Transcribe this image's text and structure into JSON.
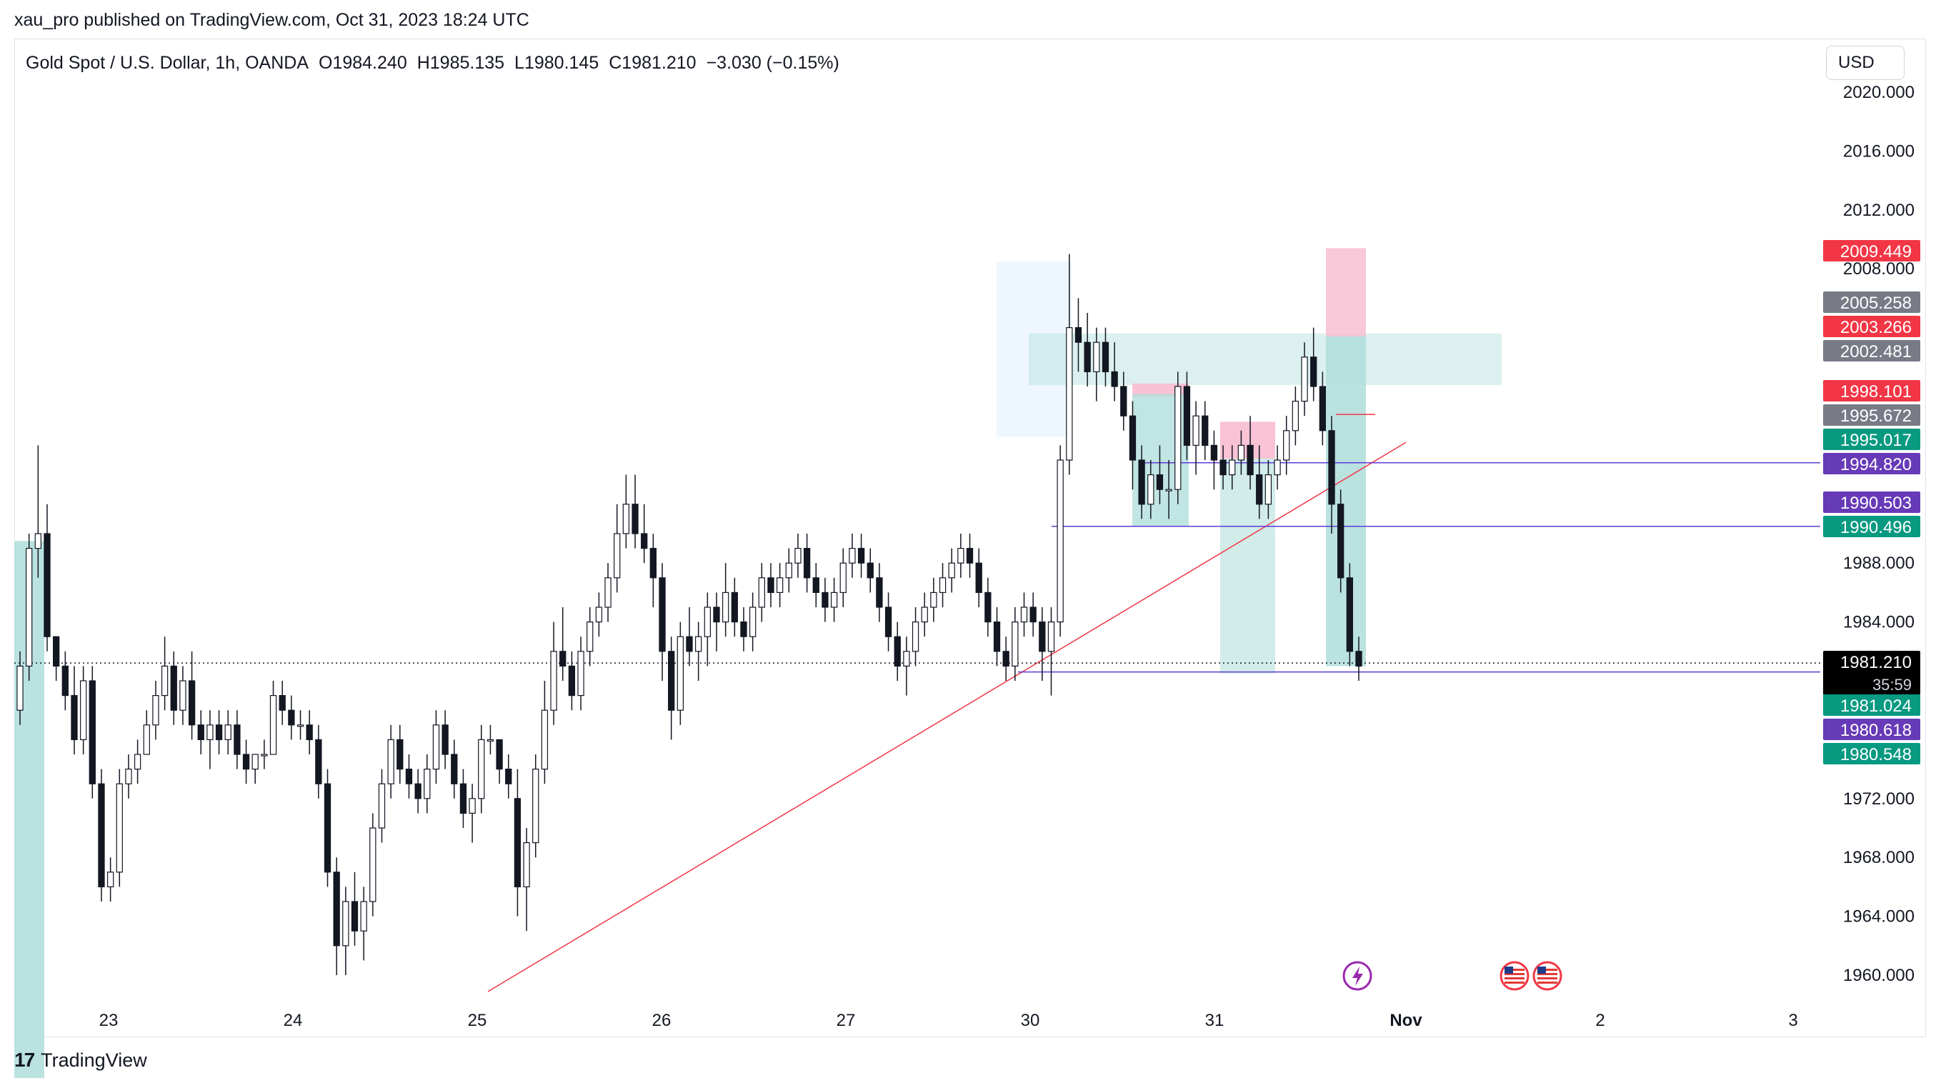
{
  "publish_header": "xau_pro published on TradingView.com, Oct 31, 2023 18:24 UTC",
  "symbol": {
    "name": "Gold Spot / U.S. Dollar, 1h, OANDA",
    "open": "O1984.240",
    "high": "H1985.135",
    "low": "L1980.145",
    "close": "C1981.210",
    "change": "−3.030 (−0.15%)"
  },
  "currency": "USD",
  "footer_brand": "TradingView",
  "colors": {
    "candle": "#131722",
    "position_green": "#b2dfdb",
    "position_red": "#f8bbd0",
    "trendline": "#f23645",
    "hline": "#5c3bd6",
    "price_red": "#f23645",
    "price_gray": "#787b86",
    "price_green": "#089981",
    "price_purple": "#673ab7",
    "price_black": "#000000"
  },
  "chart_data": {
    "type": "candlestick",
    "ylim": [
      1957.5,
      2023.0
    ],
    "y_ticks": [
      "2020.000",
      "2016.000",
      "2012.000",
      "2008.000",
      "1988.000",
      "1984.000",
      "1972.000",
      "1968.000",
      "1964.000",
      "1960.000"
    ],
    "x_ticks": [
      "23",
      "24",
      "25",
      "26",
      "27",
      "30",
      "31",
      "Nov",
      "2",
      "3"
    ],
    "price_labels": [
      {
        "value": "2009.449",
        "color": "red"
      },
      {
        "value": "2005.258",
        "color": "gray"
      },
      {
        "value": "2003.266",
        "color": "red"
      },
      {
        "value": "2002.481",
        "color": "gray"
      },
      {
        "value": "1998.101",
        "color": "red"
      },
      {
        "value": "1995.672",
        "color": "gray"
      },
      {
        "value": "1995.017",
        "color": "green"
      },
      {
        "value": "1994.820",
        "color": "purple"
      },
      {
        "value": "1990.503",
        "color": "purple"
      },
      {
        "value": "1990.496",
        "color": "green"
      },
      {
        "value": "1981.210",
        "color": "black",
        "sub": "35:59"
      },
      {
        "value": "1981.024",
        "color": "green"
      },
      {
        "value": "1980.618",
        "color": "purple"
      },
      {
        "value": "1980.548",
        "color": "green"
      }
    ],
    "last_price": 1981.21,
    "candles": [
      [
        1978,
        1982,
        1977,
        1981
      ],
      [
        1981,
        1990,
        1980,
        1989
      ],
      [
        1989,
        1996,
        1987,
        1990
      ],
      [
        1990,
        1992,
        1982,
        1983
      ],
      [
        1983,
        1983,
        1980,
        1981
      ],
      [
        1981,
        1982,
        1978,
        1979
      ],
      [
        1979,
        1981,
        1975,
        1976
      ],
      [
        1976,
        1981,
        1975,
        1980
      ],
      [
        1980,
        1981,
        1972,
        1973
      ],
      [
        1973,
        1974,
        1965,
        1966
      ],
      [
        1966,
        1968,
        1965,
        1967
      ],
      [
        1967,
        1974,
        1966,
        1973
      ],
      [
        1973,
        1975,
        1972,
        1974
      ],
      [
        1974,
        1976,
        1973,
        1975
      ],
      [
        1975,
        1978,
        1975,
        1977
      ],
      [
        1977,
        1980,
        1976,
        1979
      ],
      [
        1979,
        1983,
        1978,
        1981
      ],
      [
        1981,
        1982,
        1977,
        1978
      ],
      [
        1978,
        1981,
        1977,
        1980
      ],
      [
        1980,
        1982,
        1976,
        1977
      ],
      [
        1977,
        1978,
        1975,
        1976
      ],
      [
        1976,
        1978,
        1974,
        1977
      ],
      [
        1977,
        1978,
        1975,
        1976
      ],
      [
        1976,
        1978,
        1975,
        1977
      ],
      [
        1977,
        1978,
        1974,
        1975
      ],
      [
        1975,
        1976,
        1973,
        1974
      ],
      [
        1974,
        1975,
        1973,
        1975
      ],
      [
        1975,
        1976,
        1974,
        1975
      ],
      [
        1975,
        1980,
        1975,
        1979
      ],
      [
        1979,
        1980,
        1977,
        1978
      ],
      [
        1978,
        1979,
        1976,
        1977
      ],
      [
        1977,
        1978,
        1976,
        1977
      ],
      [
        1977,
        1978,
        1975,
        1976
      ],
      [
        1976,
        1977,
        1972,
        1973
      ],
      [
        1973,
        1974,
        1966,
        1967
      ],
      [
        1967,
        1968,
        1960,
        1962
      ],
      [
        1962,
        1966,
        1960,
        1965
      ],
      [
        1965,
        1967,
        1962,
        1963
      ],
      [
        1963,
        1966,
        1961,
        1965
      ],
      [
        1965,
        1971,
        1964,
        1970
      ],
      [
        1970,
        1974,
        1969,
        1973
      ],
      [
        1973,
        1977,
        1972,
        1976
      ],
      [
        1976,
        1977,
        1973,
        1974
      ],
      [
        1974,
        1975,
        1972,
        1973
      ],
      [
        1973,
        1974,
        1971,
        1972
      ],
      [
        1972,
        1975,
        1971,
        1974
      ],
      [
        1974,
        1978,
        1973,
        1977
      ],
      [
        1977,
        1978,
        1974,
        1975
      ],
      [
        1975,
        1976,
        1972,
        1973
      ],
      [
        1973,
        1974,
        1970,
        1971
      ],
      [
        1971,
        1973,
        1969,
        1972
      ],
      [
        1972,
        1977,
        1971,
        1976
      ],
      [
        1976,
        1977,
        1975,
        1976
      ],
      [
        1976,
        1976,
        1973,
        1974
      ],
      [
        1974,
        1975,
        1972,
        1973
      ],
      [
        1972,
        1974,
        1964,
        1966
      ],
      [
        1966,
        1970,
        1963,
        1969
      ],
      [
        1969,
        1975,
        1968,
        1974
      ],
      [
        1974,
        1980,
        1973,
        1978
      ],
      [
        1978,
        1984,
        1977,
        1982
      ],
      [
        1982,
        1985,
        1980,
        1981
      ],
      [
        1981,
        1982,
        1978,
        1979
      ],
      [
        1979,
        1983,
        1978,
        1982
      ],
      [
        1982,
        1985,
        1981,
        1984
      ],
      [
        1984,
        1986,
        1983,
        1985
      ],
      [
        1985,
        1988,
        1984,
        1987
      ],
      [
        1987,
        1992,
        1986,
        1990
      ],
      [
        1990,
        1994,
        1989,
        1992
      ],
      [
        1992,
        1994,
        1989,
        1990
      ],
      [
        1990,
        1992,
        1988,
        1989
      ],
      [
        1989,
        1990,
        1985,
        1987
      ],
      [
        1987,
        1988,
        1980,
        1982
      ],
      [
        1982,
        1983,
        1976,
        1978
      ],
      [
        1978,
        1984,
        1977,
        1983
      ],
      [
        1983,
        1985,
        1981,
        1982
      ],
      [
        1982,
        1984,
        1980,
        1983
      ],
      [
        1983,
        1986,
        1981,
        1985
      ],
      [
        1985,
        1986,
        1982,
        1984
      ],
      [
        1984,
        1988,
        1983,
        1986
      ],
      [
        1986,
        1987,
        1983,
        1984
      ],
      [
        1984,
        1985,
        1982,
        1983
      ],
      [
        1983,
        1986,
        1982,
        1985
      ],
      [
        1985,
        1988,
        1984,
        1987
      ],
      [
        1987,
        1988,
        1985,
        1986
      ],
      [
        1986,
        1988,
        1985,
        1987
      ],
      [
        1987,
        1989,
        1986,
        1988
      ],
      [
        1988,
        1990,
        1987,
        1989
      ],
      [
        1989,
        1990,
        1986,
        1987
      ],
      [
        1987,
        1988,
        1985,
        1986
      ],
      [
        1986,
        1987,
        1984,
        1985
      ],
      [
        1985,
        1987,
        1984,
        1986
      ],
      [
        1986,
        1989,
        1985,
        1988
      ],
      [
        1988,
        1990,
        1987,
        1989
      ],
      [
        1989,
        1990,
        1987,
        1988
      ],
      [
        1988,
        1989,
        1986,
        1987
      ],
      [
        1987,
        1988,
        1984,
        1985
      ],
      [
        1985,
        1986,
        1982,
        1983
      ],
      [
        1983,
        1984,
        1980,
        1981
      ],
      [
        1981,
        1983,
        1979,
        1982
      ],
      [
        1982,
        1985,
        1981,
        1984
      ],
      [
        1984,
        1986,
        1983,
        1985
      ],
      [
        1985,
        1987,
        1984,
        1986
      ],
      [
        1986,
        1988,
        1985,
        1987
      ],
      [
        1987,
        1989,
        1986,
        1988
      ],
      [
        1988,
        1990,
        1987,
        1989
      ],
      [
        1989,
        1990,
        1987,
        1988
      ],
      [
        1988,
        1989,
        1985,
        1986
      ],
      [
        1986,
        1987,
        1983,
        1984
      ],
      [
        1984,
        1985,
        1981,
        1982
      ],
      [
        1982,
        1983,
        1980,
        1981
      ],
      [
        1981,
        1985,
        1980,
        1984
      ],
      [
        1984,
        1986,
        1983,
        1985
      ],
      [
        1985,
        1986,
        1983,
        1984
      ],
      [
        1984,
        1985,
        1980,
        1982
      ],
      [
        1982,
        1985,
        1979,
        1984
      ],
      [
        1984,
        1996,
        1983,
        1995
      ],
      [
        1995,
        2009,
        1994,
        2004
      ],
      [
        2004,
        2006,
        2001,
        2003
      ],
      [
        2003,
        2005,
        2000,
        2001
      ],
      [
        2001,
        2004,
        1999,
        2003
      ],
      [
        2003,
        2004,
        2000,
        2001
      ],
      [
        2001,
        2003,
        1999,
        2000
      ],
      [
        2000,
        2001,
        1997,
        1998
      ],
      [
        1998,
        1999,
        1993,
        1995
      ],
      [
        1995,
        1996,
        1991,
        1992
      ],
      [
        1992,
        1995,
        1991,
        1994
      ],
      [
        1994,
        1996,
        1992,
        1993
      ],
      [
        1993,
        1995,
        1991,
        1993
      ],
      [
        1993,
        2001,
        1992,
        2000
      ],
      [
        2000,
        2001,
        1995,
        1996
      ],
      [
        1996,
        1999,
        1994,
        1998
      ],
      [
        1998,
        1999,
        1995,
        1996
      ],
      [
        1996,
        1997,
        1993,
        1995
      ],
      [
        1995,
        1996,
        1993,
        1994
      ],
      [
        1994,
        1996,
        1993,
        1995
      ],
      [
        1995,
        1997,
        1994,
        1996
      ],
      [
        1996,
        1998,
        1993,
        1994
      ],
      [
        1994,
        1996,
        1991,
        1992
      ],
      [
        1992,
        1995,
        1991,
        1994
      ],
      [
        1994,
        1996,
        1993,
        1995
      ],
      [
        1995,
        1998,
        1994,
        1997
      ],
      [
        1997,
        2000,
        1996,
        1999
      ],
      [
        1999,
        2003,
        1998,
        2002
      ],
      [
        2002,
        2004,
        1999,
        2000
      ],
      [
        2000,
        2001,
        1996,
        1997
      ],
      [
        1997,
        1998,
        1990,
        1992
      ],
      [
        1992,
        1993,
        1986,
        1987
      ],
      [
        1987,
        1988,
        1981,
        1982
      ],
      [
        1982,
        1983,
        1980,
        1981
      ]
    ]
  }
}
